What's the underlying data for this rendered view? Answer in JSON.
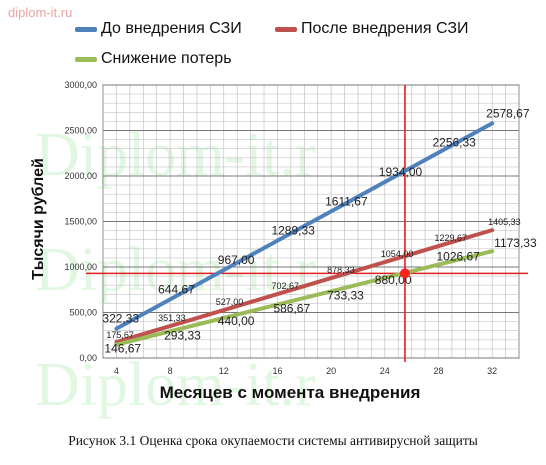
{
  "watermark": "diplom-it.ru",
  "watermark_big": "Diplom-it.r",
  "caption": "Рисунок 3.1 Оценка срока окупаемости системы антивирусной защиты",
  "chart_data": {
    "type": "line",
    "title": "",
    "xlabel": "Месяцев с момента внедрения",
    "ylabel": "Тысячи рублей",
    "x": [
      4,
      8,
      12,
      16,
      20,
      24,
      28,
      32
    ],
    "ylim": [
      0,
      3000
    ],
    "yticks": [
      "0,00",
      "500,00",
      "1000,00",
      "1500,00",
      "2000,00",
      "2500,00",
      "3000,00"
    ],
    "xticks": [
      "4",
      "8",
      "12",
      "16",
      "20",
      "24",
      "28",
      "32"
    ],
    "grid": true,
    "legend_position": "top",
    "series": [
      {
        "name": "До внедрения СЗИ",
        "color": "#4f81bd",
        "values": [
          322.33,
          644.67,
          967.0,
          1289.33,
          1611.67,
          1934.0,
          2256.33,
          2578.67
        ],
        "labels": [
          "322,33",
          "644,67",
          "967,00",
          "1289,33",
          "1611,67",
          "1934,00",
          "2256,33",
          "2578,67"
        ]
      },
      {
        "name": "После внедрения СЗИ",
        "color": "#c0504d",
        "values": [
          175.67,
          351.33,
          527.0,
          702.67,
          878.33,
          1054.0,
          1229.67,
          1405.33
        ],
        "labels": [
          "175,67",
          "351,33",
          "527,00",
          "702,67",
          "878,33",
          "1054,00",
          "1229,67",
          "1405,33"
        ]
      },
      {
        "name": "Снижение потерь",
        "color": "#9bbb59",
        "values": [
          146.67,
          293.33,
          440.0,
          586.67,
          733.33,
          880.0,
          1026.67,
          1173.33
        ],
        "labels": [
          "146,67",
          "293,33",
          "440,00",
          "586,67",
          "733,33",
          "880,00",
          "1026,67",
          "1173,33"
        ]
      }
    ],
    "payback_marker": {
      "x": 25.5,
      "y": 930
    }
  }
}
